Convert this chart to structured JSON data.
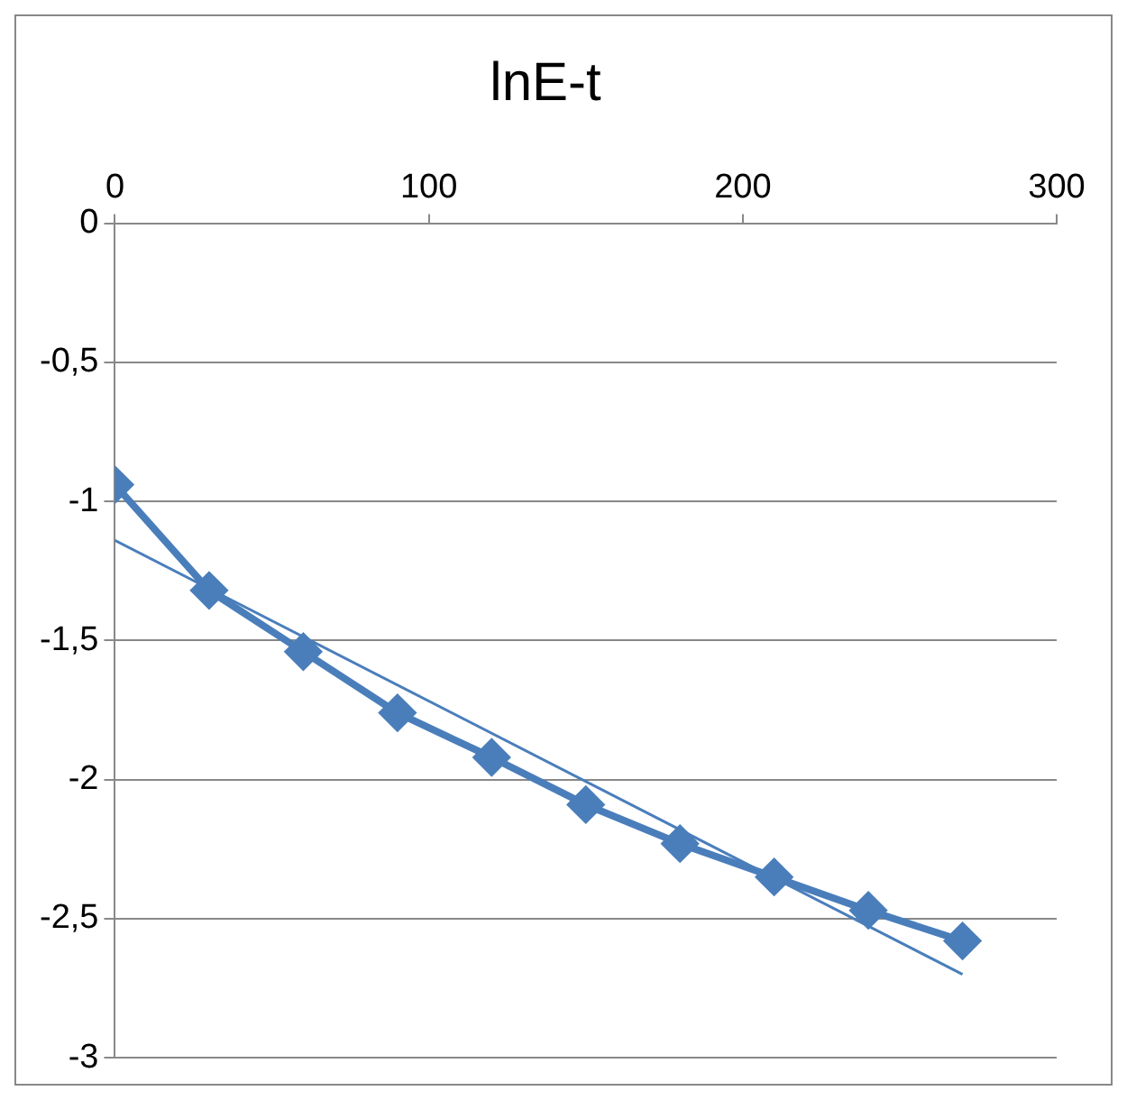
{
  "chart_data": {
    "type": "line",
    "title": "lnE-t",
    "x": [
      0,
      30,
      60,
      90,
      120,
      150,
      180,
      210,
      240,
      270
    ],
    "series": [
      {
        "color": "#4a7ebb",
        "values": [
          -0.94,
          -1.32,
          -1.54,
          -1.76,
          -1.92,
          -2.09,
          -2.23,
          -2.35,
          -2.47,
          -2.58
        ],
        "marker": "diamond"
      },
      {
        "type": "line",
        "color": "#4a7ebb",
        "x": [
          0,
          270
        ],
        "values": [
          -1.14,
          -2.7
        ],
        "marker": "none"
      }
    ],
    "xlim": [
      0,
      300
    ],
    "xticks": [
      0,
      100,
      200,
      300
    ],
    "ylim": [
      -3,
      0
    ],
    "yticks": [
      0,
      {
        "value": -0.5,
        "label": "-0,5"
      },
      -1,
      {
        "value": -1.5,
        "label": "-1,5"
      },
      -2,
      {
        "value": -2.5,
        "label": "-2,5"
      },
      -3
    ],
    "grid": "y",
    "legend": false,
    "line_style": "solid"
  }
}
